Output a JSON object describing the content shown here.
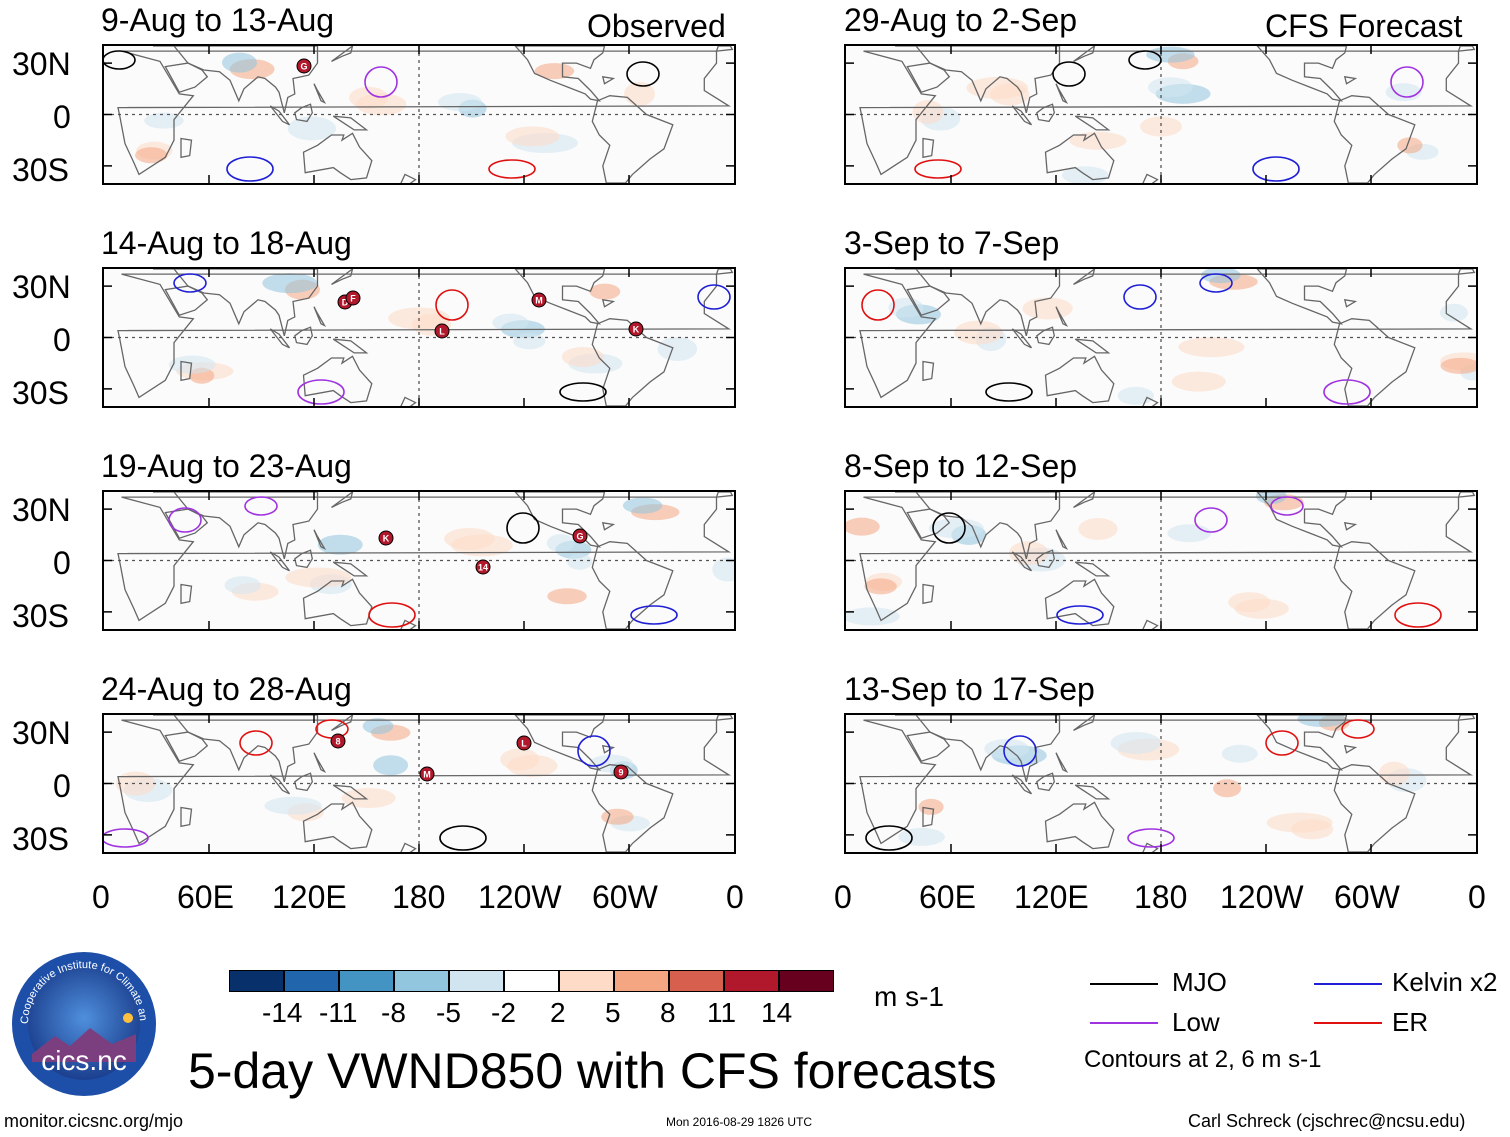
{
  "main_title": "5-day VWND850 with CFS forecasts",
  "headers": {
    "observed": "Observed",
    "forecast": "CFS Forecast"
  },
  "panels": {
    "observed": [
      {
        "title": "9-Aug to 13-Aug",
        "storms": [
          "G"
        ]
      },
      {
        "title": "14-Aug to 18-Aug",
        "storms": [
          "D",
          "L",
          "M",
          "K",
          "F"
        ]
      },
      {
        "title": "19-Aug to 23-Aug",
        "storms": [
          "K",
          "14",
          "G"
        ]
      },
      {
        "title": "24-Aug to 28-Aug",
        "storms": [
          "M",
          "L",
          "9",
          "8"
        ]
      }
    ],
    "forecast": [
      {
        "title": "29-Aug to 2-Sep"
      },
      {
        "title": "3-Sep to 7-Sep"
      },
      {
        "title": "8-Sep to 12-Sep"
      },
      {
        "title": "13-Sep to 17-Sep"
      }
    ]
  },
  "lat_labels": [
    "30N",
    "0",
    "30S"
  ],
  "lon_labels": [
    "0",
    "60E",
    "120E",
    "180",
    "120W",
    "60W",
    "0"
  ],
  "colorbar": {
    "colors": [
      "#08306b",
      "#2166ac",
      "#4393c3",
      "#92c5de",
      "#d1e5f0",
      "#ffffff",
      "#fddbc7",
      "#f4a582",
      "#d6604d",
      "#b2182b",
      "#67001f"
    ],
    "labels": [
      "-14",
      "-11",
      "-8",
      "-5",
      "-2",
      "2",
      "5",
      "8",
      "11",
      "14"
    ],
    "units": "m s-1"
  },
  "legend": {
    "items": [
      {
        "label": "MJO",
        "color": "#000000"
      },
      {
        "label": "Kelvin x2",
        "color": "#1f1fd6"
      },
      {
        "label": "Low",
        "color": "#a033e0"
      },
      {
        "label": "ER",
        "color": "#e01010"
      }
    ],
    "note": "Contours at 2, 6 m s-1"
  },
  "logo": {
    "arc_text": "Cooperative Institute for Climate and Satellites",
    "name": "cics.nc"
  },
  "footer": {
    "left": "monitor.cicsnc.org/mjo",
    "center": "Mon 2016-08-29 1826 UTC",
    "right": "Carl Schreck (cjschrec@ncsu.edu)"
  }
}
